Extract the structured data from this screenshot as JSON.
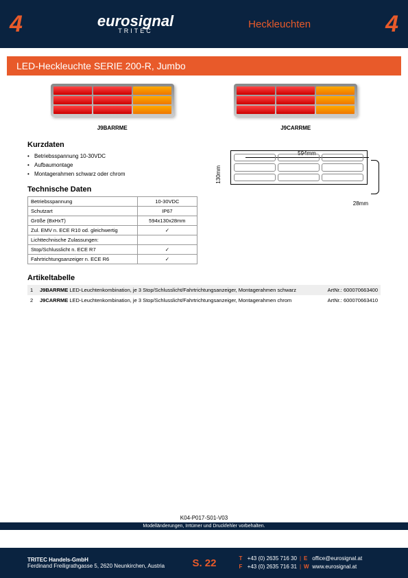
{
  "header": {
    "num": "4",
    "logo": "eurosignal",
    "logosub": "TRITEC",
    "category": "Heckleuchten"
  },
  "title": "LED-Heckleuchte SERIE 200-R, Jumbo",
  "products": [
    {
      "code": "J9BARRME"
    },
    {
      "code": "J9CARRME"
    }
  ],
  "kurzdaten": {
    "title": "Kurzdaten",
    "items": [
      "Betriebsspannung 10-30VDC",
      "Aufbaumontage",
      "Montagerahmen schwarz oder chrom"
    ]
  },
  "tech": {
    "title": "Technische Daten",
    "rows": [
      {
        "k": "Betriebsspannung",
        "v": "10-30VDC"
      },
      {
        "k": "Schutzart",
        "v": "IP67"
      },
      {
        "k": "Größe (BxHxT)",
        "v": "594x130x28mm"
      },
      {
        "k": "Zul. EMV n. ECE R10 od. gleichwertig",
        "v": "✓"
      },
      {
        "k": "Lichttechnische Zulassungen:",
        "v": ""
      },
      {
        "k": "Stop/Schlusslicht n. ECE R7",
        "v": "✓"
      },
      {
        "k": "Fahrtrichtungsanzeiger n. ECE R6",
        "v": "✓"
      }
    ]
  },
  "dimensions": {
    "w": "594mm",
    "h": "130mm",
    "d": "28mm"
  },
  "artikel": {
    "title": "Artikeltabelle",
    "rows": [
      {
        "n": "1",
        "code": "J9BARRME",
        "desc": "LED-Leuchtenkombination, je 3 Stop/Schlusslicht/Fahrtrichtungsanzeiger, Montagerahmen schwarz",
        "art": "ArtNr.: 600070663400"
      },
      {
        "n": "2",
        "code": "J9CARRME",
        "desc": "LED-Leuchtenkombination, je 3 Stop/Schlusslicht/Fahrtrichtungsanzeiger, Montagerahmen chrom",
        "art": "ArtNr.: 600070663410"
      }
    ]
  },
  "docid": "K04-P017-S01-V03",
  "disclaimer": "Modelländerungen, Irrtümer und Druckfehler vorbehalten.",
  "footer": {
    "company": "TRITEC Handels-GmbH",
    "address": "Ferdinand Freiligrathgasse 5, 2620 Neunkirchen, Austria",
    "page": "S. 22",
    "tel": "+43 (0) 2635 716 30",
    "fax": "+43 (0) 2635 716 31",
    "email": "office@eurosignal.at",
    "web": "www.eurosignal.at"
  }
}
